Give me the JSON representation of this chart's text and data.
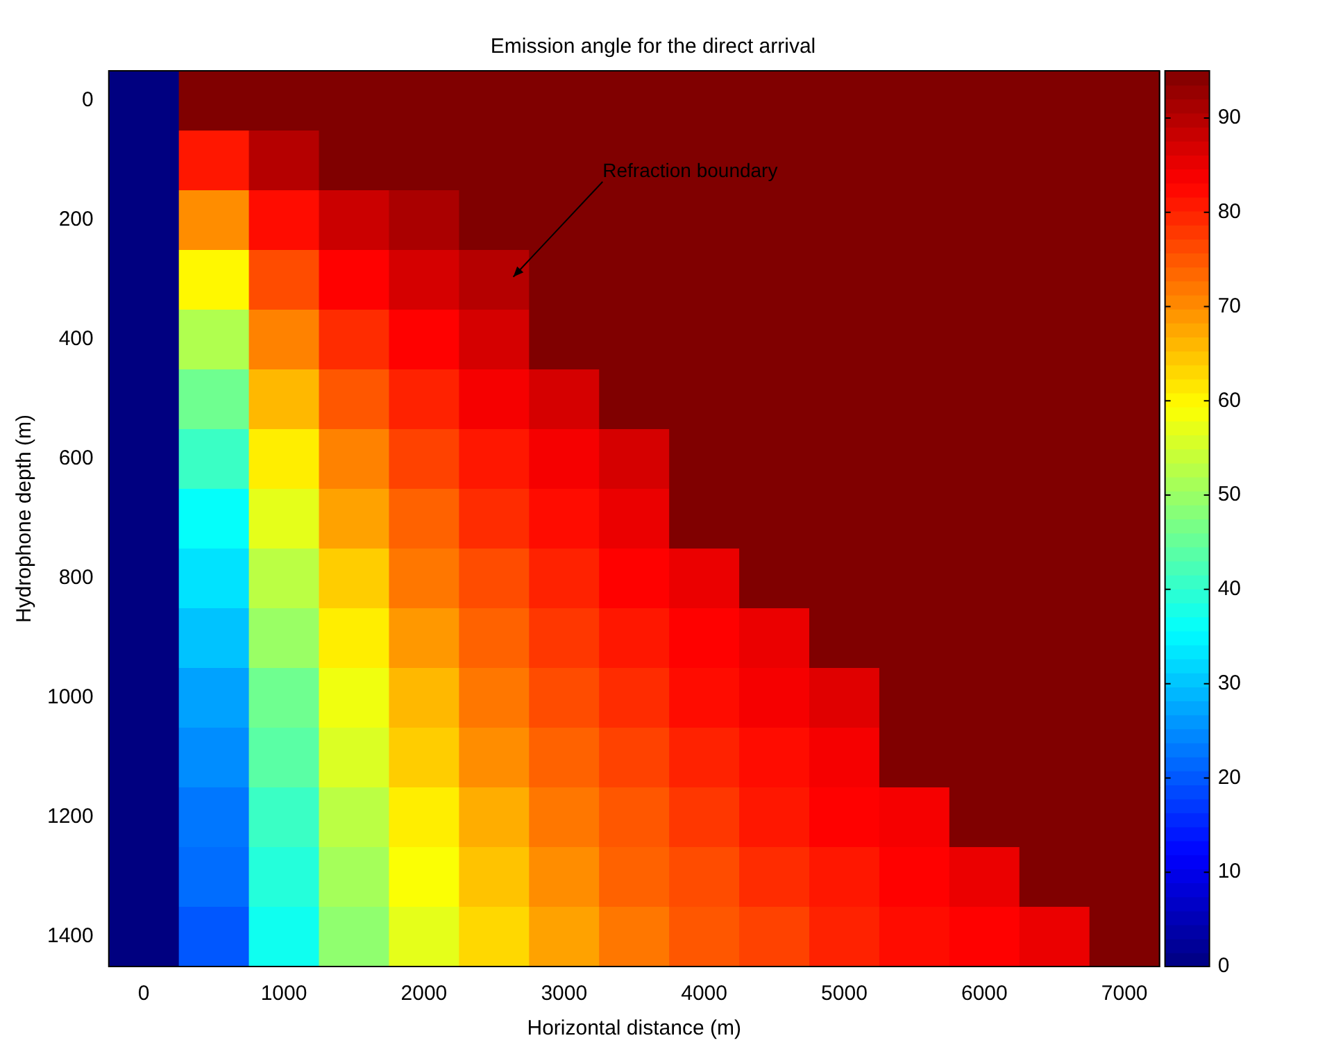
{
  "chart_data": {
    "type": "heatmap",
    "title": "Emission angle for the direct arrival",
    "xlabel": "Horizontal distance (m)",
    "ylabel": "Hydrophone depth (m)",
    "categories": [
      "0",
      null,
      "1000",
      null,
      "2000",
      null,
      "3000",
      null,
      "4000",
      null,
      "5000",
      null,
      "6000",
      null,
      "7000"
    ],
    "y_categories": [
      "0",
      null,
      "200",
      null,
      "400",
      null,
      "600",
      null,
      "800",
      null,
      "1000",
      null,
      "1200",
      null,
      "1400"
    ],
    "clim": [
      0,
      95
    ],
    "cticks": [
      0,
      10,
      20,
      30,
      40,
      50,
      60,
      70,
      80,
      90
    ],
    "cells": [
      [
        0,
        95,
        95,
        95,
        95,
        95,
        95,
        95,
        95,
        95,
        95,
        95,
        95,
        95,
        95
      ],
      [
        0,
        81,
        90,
        95,
        95,
        95,
        95,
        95,
        95,
        95,
        95,
        95,
        95,
        95,
        95
      ],
      [
        0,
        70,
        82,
        88,
        91,
        95,
        95,
        95,
        95,
        95,
        95,
        95,
        95,
        95,
        95
      ],
      [
        0,
        60,
        76,
        83,
        87,
        90,
        95,
        95,
        95,
        95,
        95,
        95,
        95,
        95,
        95
      ],
      [
        0,
        52,
        71,
        79,
        83,
        87,
        95,
        95,
        95,
        95,
        95,
        95,
        95,
        95,
        95
      ],
      [
        0,
        46,
        66,
        75,
        80,
        84,
        87,
        95,
        95,
        95,
        95,
        95,
        95,
        95,
        95
      ],
      [
        0,
        41,
        61,
        71,
        77,
        81,
        84,
        87,
        95,
        95,
        95,
        95,
        95,
        95,
        95
      ],
      [
        0,
        36,
        57,
        68,
        74,
        79,
        82,
        85,
        95,
        95,
        95,
        95,
        95,
        95,
        95
      ],
      [
        0,
        33,
        53,
        64,
        72,
        76,
        80,
        83,
        85,
        95,
        95,
        95,
        95,
        95,
        95
      ],
      [
        0,
        30,
        50,
        61,
        69,
        74,
        78,
        81,
        83,
        85,
        95,
        95,
        95,
        95,
        95
      ],
      [
        0,
        27,
        46,
        58,
        66,
        72,
        76,
        79,
        82,
        84,
        86,
        95,
        95,
        95,
        95
      ],
      [
        0,
        25,
        44,
        56,
        64,
        70,
        74,
        77,
        80,
        82,
        84,
        95,
        95,
        95,
        95
      ],
      [
        0,
        23,
        41,
        53,
        61,
        67,
        72,
        75,
        78,
        81,
        83,
        84,
        95,
        95,
        95
      ],
      [
        0,
        22,
        39,
        51,
        59,
        65,
        70,
        74,
        76,
        79,
        81,
        83,
        85,
        95,
        95
      ],
      [
        0,
        20,
        37,
        49,
        57,
        63,
        68,
        72,
        75,
        77,
        80,
        82,
        83,
        85,
        95
      ]
    ],
    "annotations": [
      "Refraction boundary"
    ]
  }
}
